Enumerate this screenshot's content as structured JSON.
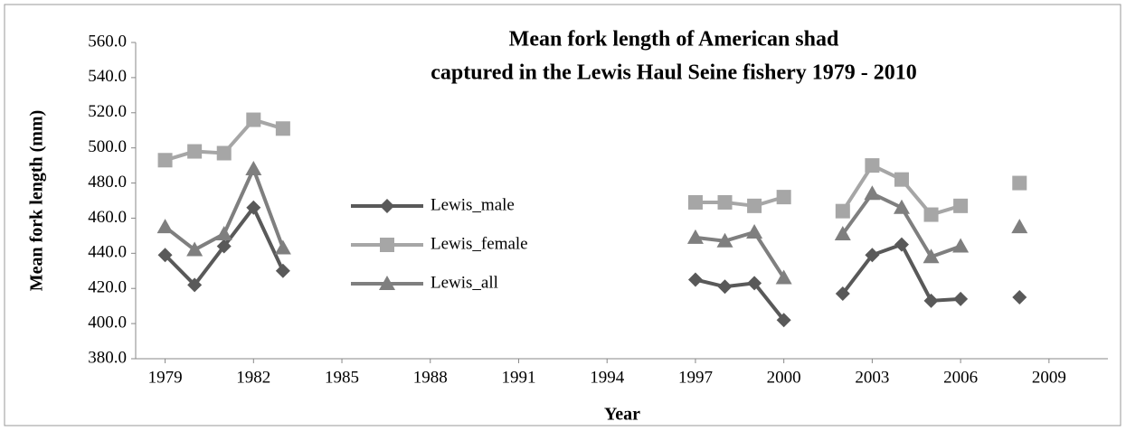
{
  "chart_data": {
    "type": "line",
    "title": [
      "Mean fork length of American shad",
      "captured in the Lewis Haul Seine fishery  1979 - 2010"
    ],
    "x_label": "Year",
    "y_label": "Mean fork length (mm)",
    "x": [
      1979,
      1980,
      1981,
      1982,
      1983,
      1984,
      1985,
      1986,
      1987,
      1988,
      1989,
      1990,
      1991,
      1992,
      1993,
      1994,
      1995,
      1996,
      1997,
      1998,
      1999,
      2000,
      2001,
      2002,
      2003,
      2004,
      2005,
      2006,
      2007,
      2008
    ],
    "series": [
      {
        "name": "Lewis_male",
        "color": "#595959",
        "marker": "diamond",
        "values": [
          439,
          422,
          444,
          466,
          430,
          null,
          null,
          null,
          null,
          null,
          null,
          null,
          null,
          null,
          null,
          null,
          null,
          null,
          425,
          421,
          423,
          402,
          null,
          417,
          439,
          445,
          413,
          414,
          null,
          415
        ]
      },
      {
        "name": "Lewis_female",
        "color": "#a6a6a6",
        "marker": "square",
        "values": [
          493,
          498,
          497,
          516,
          511,
          null,
          null,
          null,
          null,
          null,
          null,
          null,
          null,
          null,
          null,
          null,
          null,
          null,
          469,
          469,
          467,
          472,
          null,
          464,
          490,
          482,
          462,
          467,
          null,
          480
        ]
      },
      {
        "name": "Lewis_all",
        "color": "#7f7f7f",
        "marker": "triangle",
        "values": [
          455,
          442,
          451,
          488,
          443,
          null,
          null,
          null,
          null,
          null,
          null,
          null,
          null,
          null,
          null,
          null,
          null,
          null,
          449,
          447,
          452,
          426,
          null,
          451,
          474,
          466,
          438,
          444,
          null,
          455
        ]
      }
    ],
    "xlim": [
      1978,
      2011
    ],
    "xticks": [
      1979,
      1982,
      1985,
      1988,
      1991,
      1994,
      1997,
      2000,
      2003,
      2006,
      2009
    ],
    "ylim": [
      380,
      560
    ],
    "yticks": [
      {
        "value": 380,
        "label": "380.0"
      },
      {
        "value": 400,
        "label": "400.0"
      },
      {
        "value": 420,
        "label": "420.0"
      },
      {
        "value": 440,
        "label": "440.0"
      },
      {
        "value": 460,
        "label": "460.0"
      },
      {
        "value": 480,
        "label": "480.0"
      },
      {
        "value": 500,
        "label": "500.0"
      },
      {
        "value": 520,
        "label": "520.0"
      },
      {
        "value": 540,
        "label": "540.0"
      },
      {
        "value": 560,
        "label": "560.0"
      }
    ],
    "grid": false,
    "legend": "center-left"
  }
}
